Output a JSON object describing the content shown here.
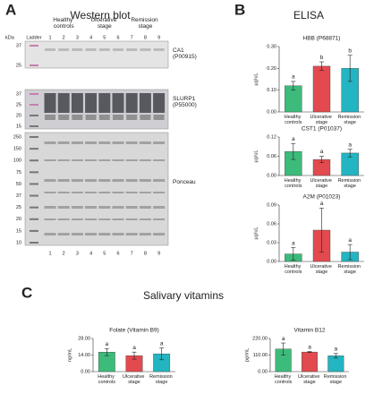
{
  "panel_labels": [
    "A",
    "B",
    "C"
  ],
  "western_blot": {
    "title": "Western blot",
    "kda_label": "kDa",
    "ladder_label": "Ladder",
    "groups": [
      "Healthy controls",
      "Ulcerative stage",
      "Remission stage"
    ],
    "lanes": [
      "1",
      "2",
      "3",
      "4",
      "5",
      "6",
      "7",
      "8",
      "9"
    ],
    "blots": [
      {
        "label": "CA1 (P00915)",
        "markers": [
          "37",
          "25"
        ]
      },
      {
        "label": "SLURP1 (P55000)",
        "markers": [
          "37",
          "25",
          "20",
          "15"
        ]
      },
      {
        "label": "Ponceau",
        "markers": [
          "250",
          "150",
          "100",
          "75",
          "50",
          "37",
          "25",
          "20",
          "15",
          "10"
        ]
      }
    ]
  },
  "elisa_title": "ELISA",
  "vitamins_title": "Salivary vitamins",
  "chart_data": [
    {
      "type": "bar",
      "title": "HBB (P68871)",
      "y_label": "µg/uL",
      "categories": [
        "Healthy controls",
        "Ulcerative stage",
        "Remission stage"
      ],
      "values": [
        0.12,
        0.21,
        0.2
      ],
      "errors": [
        0.02,
        0.02,
        0.06
      ],
      "letters": [
        "a",
        "b",
        "b"
      ],
      "colors": [
        "#3dbb7a",
        "#e24a4f",
        "#23b5c1"
      ],
      "ylim": [
        0,
        0.3
      ],
      "yticks": [
        {
          "value": 0,
          "label": "0.00"
        },
        {
          "value": 0.1,
          "label": "0.10"
        },
        {
          "value": 0.2,
          "label": "0.20"
        },
        {
          "value": 0.3,
          "label": "0.30"
        }
      ]
    },
    {
      "type": "bar",
      "title": "CST1 (P01037)",
      "y_label": "µg/uL",
      "categories": [
        "Healthy controls",
        "Ulcerative stage",
        "Remission stage"
      ],
      "values": [
        0.075,
        0.05,
        0.07
      ],
      "errors": [
        0.025,
        0.01,
        0.012
      ],
      "letters": [
        "a",
        "a",
        "a"
      ],
      "colors": [
        "#3dbb7a",
        "#e24a4f",
        "#23b5c1"
      ],
      "ylim": [
        0,
        0.12
      ],
      "yticks": [
        {
          "value": 0,
          "label": "0.00"
        },
        {
          "value": 0.06,
          "label": "0.06"
        },
        {
          "value": 0.12,
          "label": "0.12"
        }
      ]
    },
    {
      "type": "bar",
      "title": "A2M (P01023)",
      "y_label": "µg/uL",
      "categories": [
        "Healthy controls",
        "Ulcerative stage",
        "Remission stage"
      ],
      "values": [
        0.012,
        0.05,
        0.015
      ],
      "errors": [
        0.01,
        0.035,
        0.012
      ],
      "letters": [
        "a",
        "a",
        "a"
      ],
      "colors": [
        "#3dbb7a",
        "#e24a4f",
        "#23b5c1"
      ],
      "ylim": [
        0,
        0.09
      ],
      "yticks": [
        {
          "value": 0,
          "label": "0.00"
        },
        {
          "value": 0.03,
          "label": "0.03"
        },
        {
          "value": 0.06,
          "label": "0.06"
        },
        {
          "value": 0.09,
          "label": "0.09"
        }
      ]
    },
    {
      "type": "bar",
      "title": "Folate (Vitamin B9)",
      "y_label": "ng/mL",
      "categories": [
        "Healthy controls",
        "Ulcerative stage",
        "Remission stage"
      ],
      "values": [
        16.5,
        13.5,
        15
      ],
      "errors": [
        3,
        3,
        5
      ],
      "letters": [
        "a",
        "a",
        "a"
      ],
      "colors": [
        "#3dbb7a",
        "#e24a4f",
        "#23b5c1"
      ],
      "ylim": [
        0,
        28
      ],
      "yticks": [
        {
          "value": 0,
          "label": "0.00"
        },
        {
          "value": 14,
          "label": "14.00"
        },
        {
          "value": 28,
          "label": "28.00"
        }
      ]
    },
    {
      "type": "bar",
      "title": "Vitamin B12",
      "y_label": "pg/mL",
      "categories": [
        "Healthy controls",
        "Ulcerative stage",
        "Remission stage"
      ],
      "values": [
        150,
        130,
        105
      ],
      "errors": [
        40,
        3,
        15
      ],
      "letters": [
        "a",
        "a",
        "a"
      ],
      "colors": [
        "#3dbb7a",
        "#e24a4f",
        "#23b5c1"
      ],
      "ylim": [
        0,
        220
      ],
      "yticks": [
        {
          "value": 0,
          "label": "0.00"
        },
        {
          "value": 110,
          "label": "110.00"
        },
        {
          "value": 220,
          "label": "220.00"
        }
      ]
    }
  ]
}
